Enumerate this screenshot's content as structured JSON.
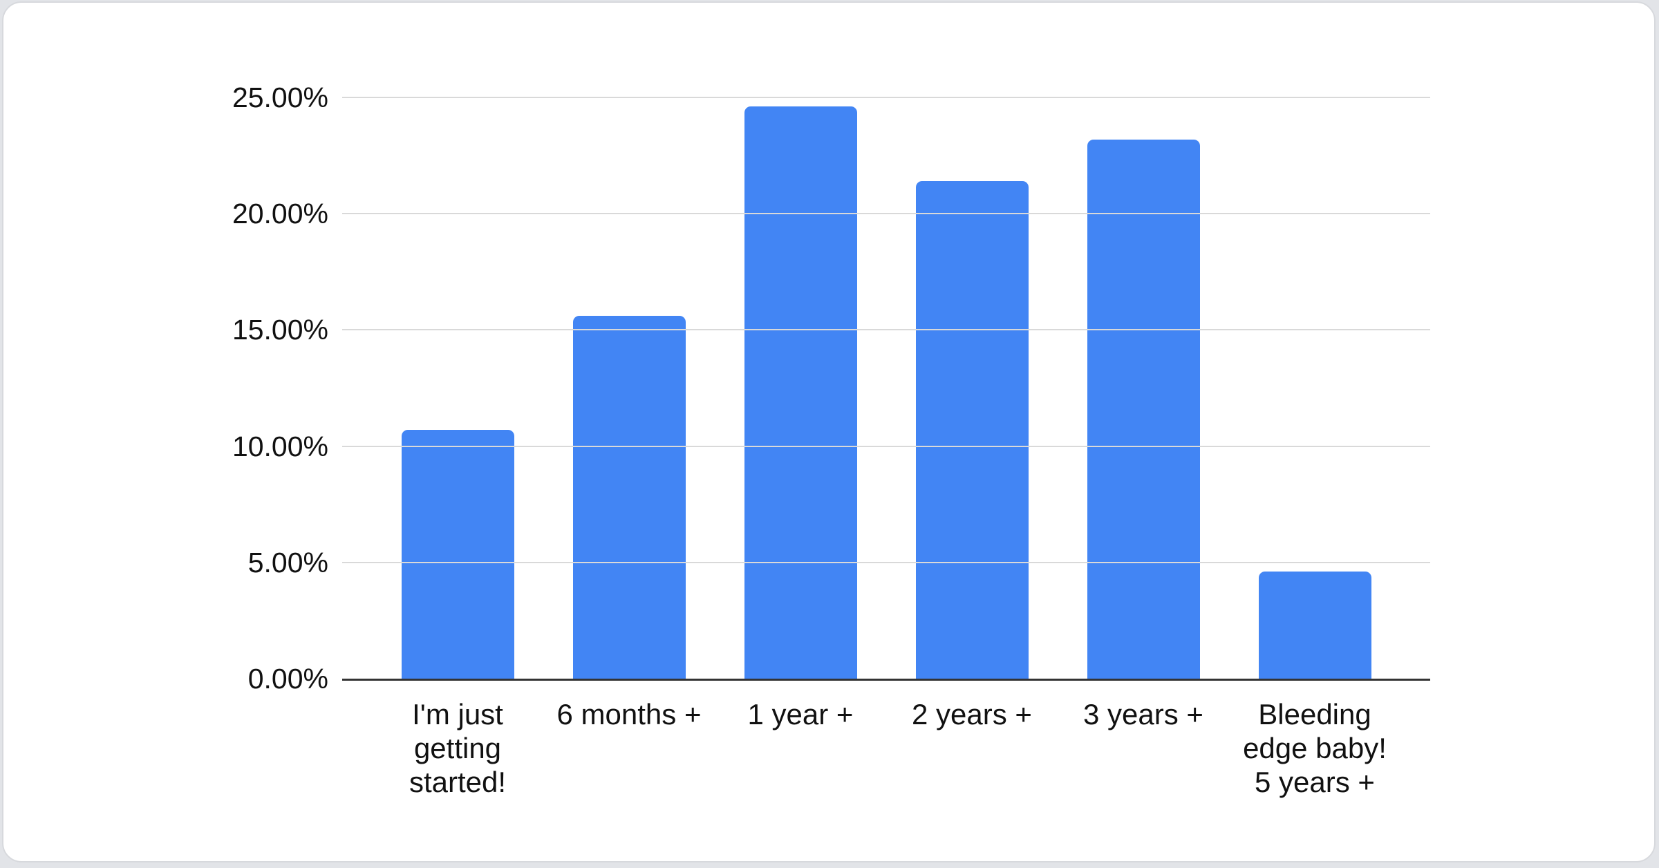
{
  "page": {
    "background_color": "#e2e4e8",
    "card_background": "#ffffff",
    "card_border_color": "#d7d9dd"
  },
  "chart_data": {
    "type": "bar",
    "categories": [
      "I'm just getting started!",
      "6 months +",
      "1 year +",
      "2 years +",
      "3 years +",
      "Bleeding edge baby! 5 years +"
    ],
    "values": [
      10.7,
      15.6,
      24.6,
      21.4,
      23.2,
      4.6
    ],
    "value_unit": "%",
    "y_ticks": [
      "0.00%",
      "5.00%",
      "10.00%",
      "15.00%",
      "20.00%",
      "25.00%"
    ],
    "x_tick_display": [
      "I'm just\ngetting\nstarted!",
      "6 months +",
      "1 year +",
      "2 years +",
      "3 years +",
      "Bleeding\nedge baby!\n5 years +"
    ],
    "ylim": [
      0,
      25
    ],
    "grid": "horizontal",
    "legend_position": "none",
    "bar_color": "#4285f4",
    "grid_color": "#d9d9d9",
    "axis_line_color": "#333333",
    "label_color": "#111111"
  }
}
